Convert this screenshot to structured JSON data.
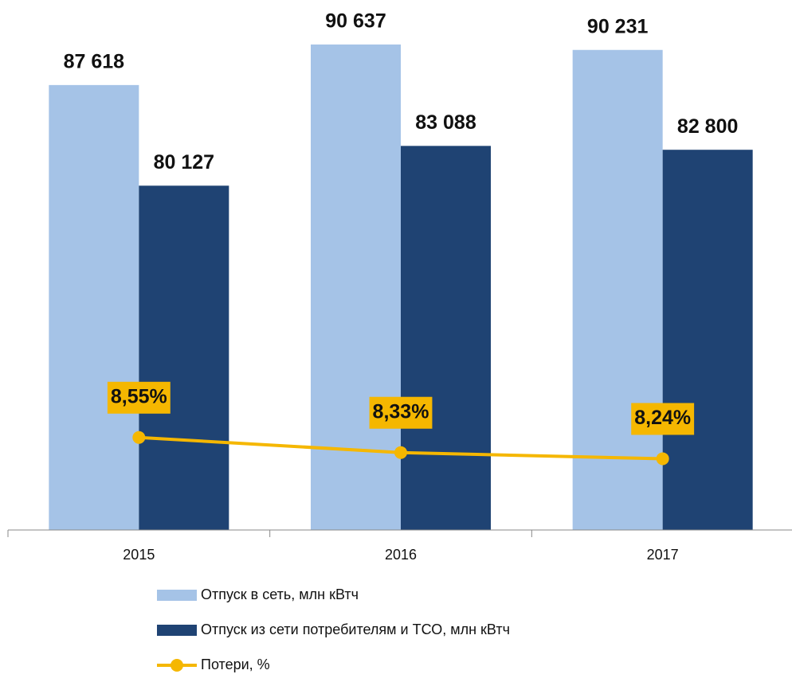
{
  "chart_data": {
    "type": "bar",
    "categories": [
      "2015",
      "2016",
      "2017"
    ],
    "series": [
      {
        "name": "Отпуск в сеть, млн кВтч",
        "type": "bar",
        "color": "#a5c3e7",
        "values": [
          87618,
          90637,
          90231
        ],
        "value_labels": [
          "87 618",
          "90 637",
          "90 231"
        ]
      },
      {
        "name": "Отпуск из сети потребителям и ТСО, млн кВтч",
        "type": "bar",
        "color": "#1f4373",
        "values": [
          80127,
          83088,
          82800
        ],
        "value_labels": [
          "80 127",
          "83 088",
          "82 800"
        ]
      },
      {
        "name": "Потери, %",
        "type": "line",
        "axis": "y2",
        "color": "#f5b700",
        "values": [
          8.55,
          8.33,
          8.24
        ],
        "value_labels": [
          "8,55%",
          "8,33%",
          "8,24%"
        ]
      }
    ],
    "ylim": [
      54500,
      93000
    ],
    "y2lim": [
      7.2,
      14.75
    ],
    "legend": "bottom"
  }
}
